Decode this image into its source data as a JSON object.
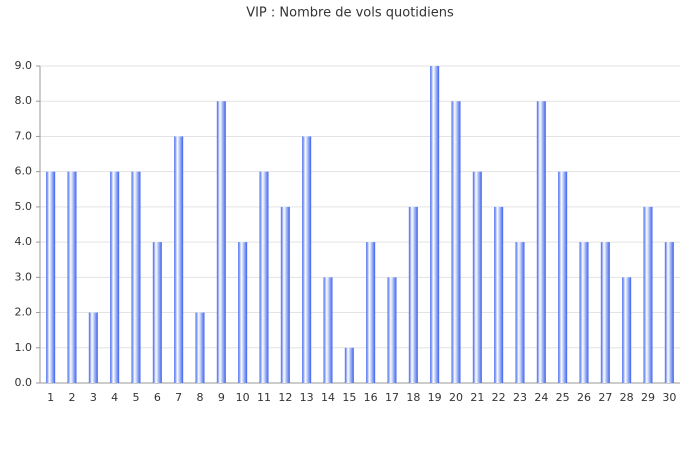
{
  "chart_data": {
    "type": "bar",
    "title": "VIP : Nombre de vols quotidiens",
    "categories": [
      "1",
      "2",
      "3",
      "4",
      "5",
      "6",
      "7",
      "8",
      "9",
      "10",
      "11",
      "12",
      "13",
      "14",
      "15",
      "16",
      "17",
      "18",
      "19",
      "20",
      "21",
      "22",
      "23",
      "24",
      "25",
      "26",
      "27",
      "28",
      "29",
      "30"
    ],
    "values": [
      6,
      6,
      2,
      6,
      6,
      4,
      7,
      2,
      8,
      4,
      6,
      5,
      7,
      3,
      1,
      4,
      3,
      5,
      9,
      8,
      6,
      5,
      4,
      8,
      6,
      4,
      4,
      3,
      5,
      4
    ],
    "color": "#3a62ee",
    "ylim": [
      0,
      9
    ],
    "yticks": [
      {
        "value": 0,
        "label": "0.0"
      },
      {
        "value": 1,
        "label": "1.0"
      },
      {
        "value": 2,
        "label": "2.0"
      },
      {
        "value": 3,
        "label": "3.0"
      },
      {
        "value": 4,
        "label": "4.0"
      },
      {
        "value": 5,
        "label": "5.0"
      },
      {
        "value": 6,
        "label": "6.0"
      },
      {
        "value": 7,
        "label": "7.0"
      },
      {
        "value": 8,
        "label": "8.0"
      },
      {
        "value": 9,
        "label": "9.0"
      }
    ],
    "grid": true
  }
}
